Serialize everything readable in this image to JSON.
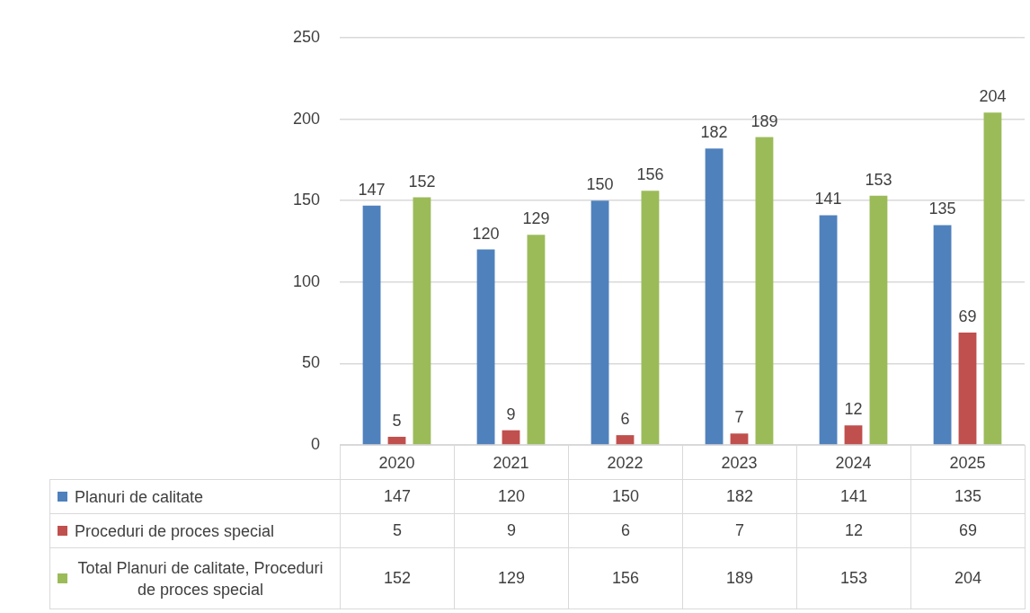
{
  "chart_data": {
    "type": "bar",
    "categories": [
      "2020",
      "2021",
      "2022",
      "2023",
      "2024",
      "2025"
    ],
    "series": [
      {
        "name": "Planuri de calitate",
        "color": "#4f81bd",
        "values": [
          147,
          120,
          150,
          182,
          141,
          135
        ]
      },
      {
        "name": "Proceduri de proces special",
        "color": "#c0504d",
        "values": [
          5,
          9,
          6,
          7,
          12,
          69
        ]
      },
      {
        "name": "Total Planuri de calitate, Proceduri de proces special",
        "color": "#9bbb59",
        "values": [
          152,
          129,
          156,
          189,
          153,
          204
        ]
      }
    ],
    "annotations": [
      "147",
      "120",
      "150",
      "182",
      "141",
      "135",
      "5",
      "9",
      "6",
      "7",
      "12",
      "69",
      "152",
      "129",
      "156",
      "189",
      "153",
      "204"
    ],
    "ylim": [
      0,
      250
    ],
    "yticks": [
      0,
      50,
      100,
      150,
      200,
      250
    ],
    "grid": "y",
    "legend": "bottom",
    "data_labels": true
  }
}
